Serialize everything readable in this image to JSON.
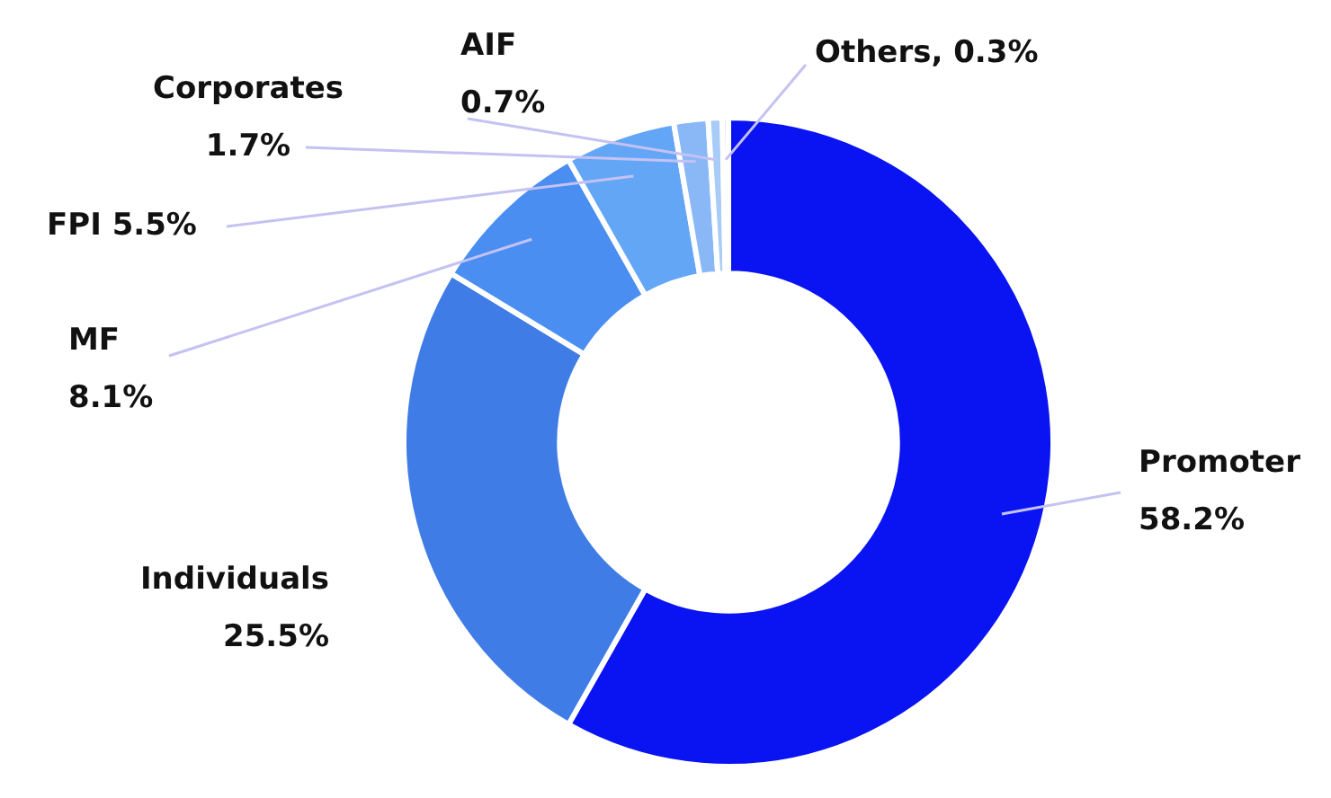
{
  "chart_data": {
    "type": "donut",
    "categories": [
      "Promoter",
      "Individuals",
      "MF",
      "FPI",
      "Corporates",
      "AIF",
      "Others"
    ],
    "values": [
      58.2,
      25.5,
      8.1,
      5.5,
      1.7,
      0.7,
      0.3
    ],
    "colors": [
      "#0a14f2",
      "#3f7ce6",
      "#4b8ef2",
      "#64a6f6",
      "#8ab8f6",
      "#a9cbf8",
      "#c9ddfa"
    ],
    "value_labels": [
      "58.2%",
      "25.5%",
      "8.1%",
      "5.5%",
      "1.7%",
      "0.7%",
      "0.3%"
    ],
    "legend": false
  }
}
